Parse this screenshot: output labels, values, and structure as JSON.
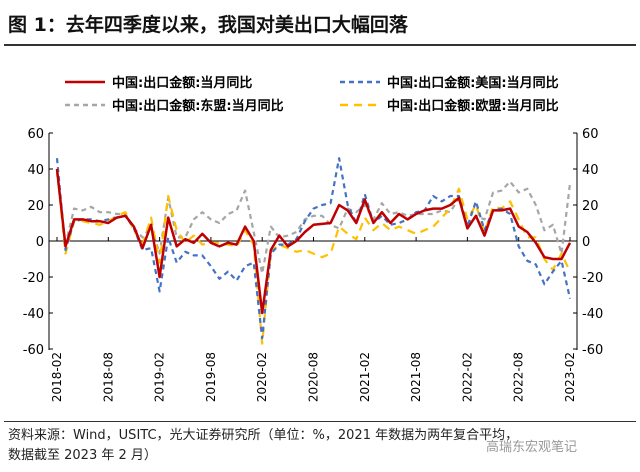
{
  "title": "图 1：去年四季度以来，我国对美出口大幅回落",
  "source": "资料来源：Wind，USITC，光大证券研究所（单位：%，2021 年数据为两年复合平均，",
  "source2": "数据截至 2023 年 2 月）",
  "watermark": "高瑞东宏观笔记",
  "chart_data": {
    "type": "line",
    "title": "图 1：去年四季度以来，我国对美出口大幅回落",
    "xlabel": "",
    "ylabel": "%",
    "ylim": [
      -60,
      60
    ],
    "yticks": [
      60,
      40,
      20,
      0,
      -20,
      -40,
      -60
    ],
    "x_start": "2018-02",
    "x_end": "2023-02",
    "xtick_labels": [
      "2018-02",
      "2018-08",
      "2019-02",
      "2019-08",
      "2020-02",
      "2020-08",
      "2021-02",
      "2021-08",
      "2022-02",
      "2022-08",
      "2023-02"
    ],
    "legend_placement": "top",
    "series": [
      {
        "name": "中国:出口金额:当月同比",
        "color": "#c00000",
        "dash": "",
        "values": [
          40,
          -3,
          12,
          12,
          11,
          11,
          10,
          13,
          14,
          8,
          -4,
          9,
          -20,
          13,
          -3,
          1,
          -1,
          4,
          -1,
          -3,
          -1,
          -2,
          8,
          0,
          -40,
          -5,
          3,
          -3,
          0,
          5,
          9,
          9.5,
          10,
          20,
          17,
          10,
          23,
          10,
          16,
          10,
          15,
          12,
          15,
          17,
          18,
          18,
          20,
          24,
          7,
          14,
          3,
          17,
          17,
          18,
          8,
          5,
          -1,
          -9,
          -10,
          -10,
          -1
        ]
      },
      {
        "name": "中国:出口金额:美国:当月同比",
        "color": "#4472c4",
        "dash": "5,4",
        "values": [
          46,
          -5,
          11,
          12,
          12,
          11,
          12,
          13,
          14,
          7,
          -5,
          -4,
          -28,
          2,
          -12,
          -6,
          -8,
          -8,
          -14,
          -21,
          -17,
          -22,
          -14,
          -12,
          -54,
          -7,
          -2,
          -2,
          1,
          11,
          18,
          20,
          21,
          46,
          20,
          10,
          26,
          10,
          14,
          9,
          10,
          12,
          16,
          17,
          25,
          22,
          25,
          25,
          8,
          22,
          6,
          17,
          18,
          15,
          -3,
          -11,
          -13,
          -24,
          -17,
          -11,
          -32
        ]
      },
      {
        "name": "中国:出口金额:东盟:当月同比",
        "color": "#a6a6a6",
        "dash": "5,4",
        "values": [
          38,
          -2,
          18,
          17,
          19,
          16,
          16,
          15,
          15,
          7,
          2,
          8,
          -7,
          24,
          2,
          2,
          12,
          16,
          12,
          10,
          15,
          17,
          28,
          5,
          -18,
          8,
          2,
          3,
          5,
          12,
          14,
          14,
          9,
          7,
          18,
          16,
          20,
          12,
          21,
          15,
          16,
          14,
          15,
          15,
          15,
          17,
          16,
          24,
          8,
          14,
          12,
          27,
          28,
          33,
          27,
          29,
          20,
          6,
          9,
          -7,
          32
        ]
      },
      {
        "name": "中国:出口金额:欧盟:当月同比",
        "color": "#ffc000",
        "dash": "8,6",
        "values": [
          40,
          -7,
          11,
          11,
          10,
          9,
          11,
          14,
          16,
          6,
          -2,
          13,
          -12,
          25,
          6,
          -1,
          3,
          -2,
          -1,
          -1,
          -2,
          -3,
          6,
          -2,
          -57,
          -6,
          -2,
          -4,
          -6,
          -5,
          -7,
          -9,
          -7,
          8,
          4,
          1,
          13,
          6,
          10,
          6,
          8,
          6,
          4,
          6,
          8,
          13,
          18,
          29,
          12,
          20,
          5,
          19,
          18,
          22,
          12,
          2,
          2,
          -10,
          -16,
          -7,
          -17
        ]
      }
    ]
  }
}
